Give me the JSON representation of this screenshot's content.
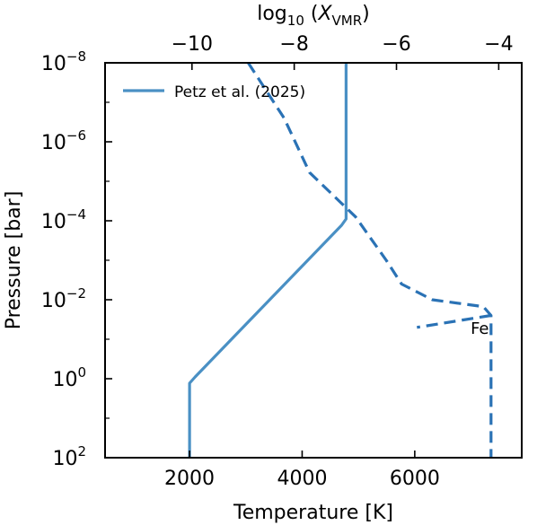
{
  "chart_data": {
    "type": "line",
    "xlabel": "Temperature [K]",
    "ylabel": "Pressure [bar]",
    "top_xlabel": {
      "pre": "log",
      "sub10": "10",
      "paren_open": " (",
      "var": "X",
      "sub": "VMR",
      "paren_close": ")"
    },
    "xlim": [
      500,
      7900
    ],
    "x_ticks": [
      2000,
      4000,
      6000
    ],
    "x_tick_labels": [
      "2000",
      "4000",
      "6000"
    ],
    "y_scale": "log",
    "y_inverted": true,
    "ylim": [
      1e-08,
      100
    ],
    "y_ticks": [
      1e-08,
      1e-06,
      0.0001,
      0.01,
      1,
      100
    ],
    "y_tick_labels": [
      {
        "base": "10",
        "exp": "−8"
      },
      {
        "base": "10",
        "exp": "−6"
      },
      {
        "base": "10",
        "exp": "−4"
      },
      {
        "base": "10",
        "exp": "−2"
      },
      {
        "base": "10",
        "exp": "0"
      },
      {
        "base": "10",
        "exp": "2"
      }
    ],
    "top_xlim": [
      -11.7,
      -3.55
    ],
    "top_x_ticks": [
      -10,
      -8,
      -6,
      -4
    ],
    "top_x_tick_labels": [
      "−10",
      "−8",
      "−6",
      "−4"
    ],
    "grid": false,
    "legend_position": "top-left",
    "series": [
      {
        "name": "Petz et al. (2025)",
        "style": "solid",
        "axis": "bottom",
        "color": "#4a90c4",
        "points": [
          {
            "x": 2000,
            "y": 100
          },
          {
            "x": 2000,
            "y": 1.3
          },
          {
            "x": 2100,
            "y": 0.9
          },
          {
            "x": 4700,
            "y": 0.00013
          },
          {
            "x": 4780,
            "y": 9e-05
          },
          {
            "x": 4780,
            "y": 1e-08
          }
        ]
      },
      {
        "label": "Fe",
        "style": "dashed",
        "axis": "top",
        "color": "#2a72b5",
        "points": [
          {
            "x": -8.9,
            "y": 1e-08
          },
          {
            "x": -8.2,
            "y": 2.5e-07
          },
          {
            "x": -7.7,
            "y": 6e-06
          },
          {
            "x": -6.8,
            "y": 8e-05
          },
          {
            "x": -6.2,
            "y": 0.001
          },
          {
            "x": -5.9,
            "y": 0.004
          },
          {
            "x": -5.3,
            "y": 0.01
          },
          {
            "x": -4.3,
            "y": 0.015
          },
          {
            "x": -4.15,
            "y": 0.025
          },
          {
            "x": -4.15,
            "y": 100
          }
        ]
      }
    ],
    "fe_curve_tail": [
      {
        "x": -4.15,
        "y": 0.025
      },
      {
        "x": -5.6,
        "y": 0.05
      }
    ],
    "annotation": {
      "text": "Fe",
      "x": -4.55,
      "y": 0.05
    }
  }
}
